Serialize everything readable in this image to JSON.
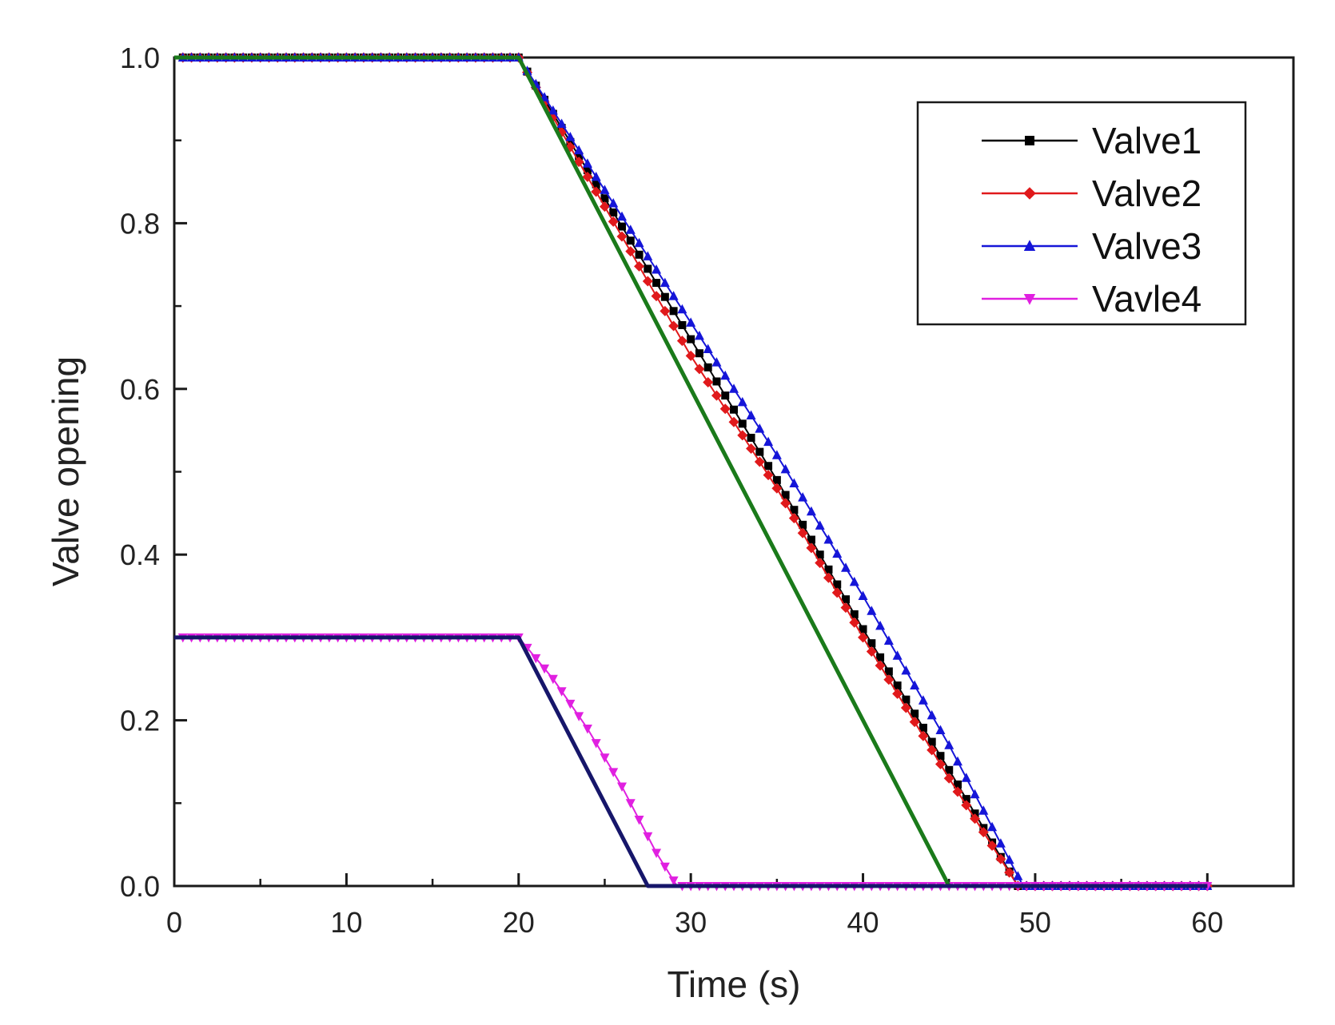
{
  "chart_data": {
    "type": "line",
    "title": "",
    "xlabel": "Time (s)",
    "ylabel": "Valve opening",
    "xlim": [
      0,
      65
    ],
    "ylim": [
      0,
      1.0
    ],
    "xticks": [
      0,
      10,
      20,
      30,
      40,
      50,
      60
    ],
    "xtick_labels": [
      "0",
      "10",
      "20",
      "30",
      "40",
      "50",
      "60"
    ],
    "yticks": [
      0,
      0.2,
      0.4,
      0.6,
      0.8,
      1.0
    ],
    "ytick_labels": [
      "0.0",
      "0.2",
      "0.4",
      "0.6",
      "0.8",
      "1.0"
    ],
    "legend_position": "top-right",
    "series": [
      {
        "name": "Valve1",
        "color": "#000000",
        "marker": "square",
        "x": [
          0,
          20,
          25,
          30,
          35,
          40,
          45,
          49,
          60
        ],
        "y": [
          1.0,
          1.0,
          0.83,
          0.66,
          0.49,
          0.31,
          0.14,
          0.0,
          0.0
        ]
      },
      {
        "name": "Valve2",
        "color": "#e0191b",
        "marker": "diamond",
        "x": [
          0,
          20,
          25,
          30,
          35,
          40,
          45,
          49,
          60
        ],
        "y": [
          1.0,
          1.0,
          0.82,
          0.64,
          0.48,
          0.3,
          0.13,
          0.0,
          0.0
        ]
      },
      {
        "name": "Valve3",
        "color": "#1515d8",
        "marker": "triangle-up",
        "x": [
          0,
          20,
          25,
          30,
          35,
          40,
          45,
          49.3,
          60
        ],
        "y": [
          1.0,
          1.0,
          0.84,
          0.68,
          0.52,
          0.35,
          0.17,
          0.0,
          0.0
        ]
      },
      {
        "name": "Vavle4",
        "color": "#e020e0",
        "marker": "triangle-down",
        "x": [
          0,
          20,
          22,
          24,
          26,
          28,
          29.2,
          60
        ],
        "y": [
          0.3,
          0.3,
          0.25,
          0.19,
          0.12,
          0.04,
          0.0,
          0.0
        ]
      },
      {
        "name": "",
        "color": "#1a7a1a",
        "marker": "none",
        "x": [
          0,
          20,
          45,
          60
        ],
        "y": [
          1.0,
          1.0,
          0.0,
          0.0
        ]
      },
      {
        "name": "",
        "color": "#16166a",
        "marker": "none",
        "x": [
          0,
          20,
          27.5,
          60
        ],
        "y": [
          0.3,
          0.3,
          0.0,
          0.0
        ]
      }
    ]
  }
}
